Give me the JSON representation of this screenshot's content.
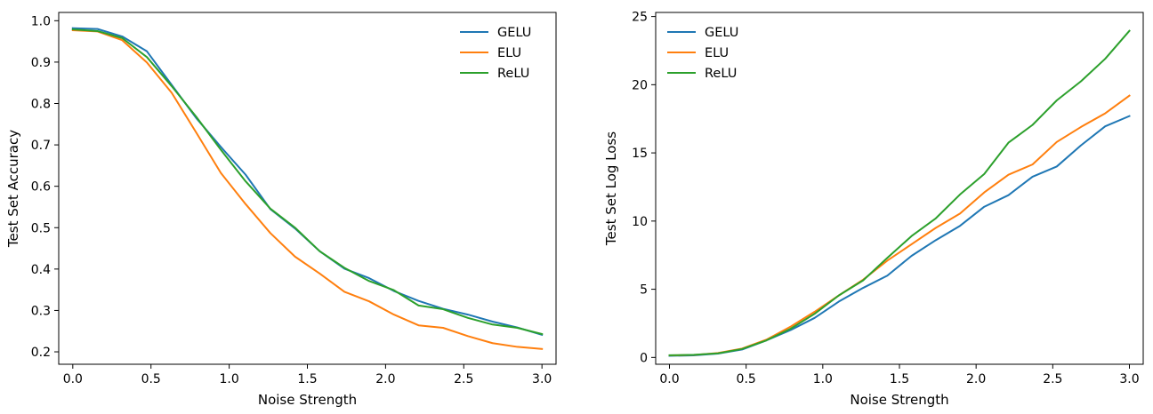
{
  "chart_data": [
    {
      "type": "line",
      "title": "",
      "xlabel": "Noise Strength",
      "ylabel": "Test Set Accuracy",
      "xlim": [
        -0.09,
        3.09
      ],
      "ylim": [
        0.17,
        1.02
      ],
      "xticks": [
        "0.0",
        "0.5",
        "1.0",
        "1.5",
        "2.0",
        "2.5",
        "3.0"
      ],
      "yticks": [
        "0.2",
        "0.3",
        "0.4",
        "0.5",
        "0.6",
        "0.7",
        "0.8",
        "0.9",
        "1.0"
      ],
      "legend_position": "top-right",
      "grid": false,
      "x": [
        0.0,
        0.158,
        0.316,
        0.474,
        0.632,
        0.789,
        0.947,
        1.105,
        1.263,
        1.421,
        1.579,
        1.737,
        1.895,
        2.053,
        2.211,
        2.368,
        2.526,
        2.684,
        2.842,
        3.0
      ],
      "series": [
        {
          "name": "GELU",
          "color": "#1f77b4",
          "values": [
            0.982,
            0.98,
            0.962,
            0.926,
            0.845,
            0.765,
            0.695,
            0.628,
            0.545,
            0.498,
            0.443,
            0.401,
            0.378,
            0.347,
            0.323,
            0.304,
            0.29,
            0.273,
            0.259,
            0.241
          ]
        },
        {
          "name": "ELU",
          "color": "#ff7f0e",
          "values": [
            0.977,
            0.974,
            0.953,
            0.899,
            0.826,
            0.73,
            0.632,
            0.557,
            0.487,
            0.43,
            0.389,
            0.345,
            0.322,
            0.29,
            0.264,
            0.258,
            0.238,
            0.221,
            0.212,
            0.207
          ]
        },
        {
          "name": "ReLU",
          "color": "#2ca02c",
          "values": [
            0.979,
            0.975,
            0.958,
            0.912,
            0.842,
            0.768,
            0.688,
            0.612,
            0.546,
            0.5,
            0.443,
            0.403,
            0.371,
            0.349,
            0.312,
            0.303,
            0.282,
            0.266,
            0.258,
            0.243
          ]
        }
      ]
    },
    {
      "type": "line",
      "title": "",
      "xlabel": "Noise Strength",
      "ylabel": "Test Set Log Loss",
      "xlim": [
        -0.09,
        3.09
      ],
      "ylim": [
        -0.5,
        25.3
      ],
      "xticks": [
        "0.0",
        "0.5",
        "1.0",
        "1.5",
        "2.0",
        "2.5",
        "3.0"
      ],
      "yticks": [
        "0",
        "5",
        "10",
        "15",
        "20",
        "25"
      ],
      "legend_position": "top-left",
      "grid": false,
      "x": [
        0.0,
        0.158,
        0.316,
        0.474,
        0.632,
        0.789,
        0.947,
        1.105,
        1.263,
        1.421,
        1.579,
        1.737,
        1.895,
        2.053,
        2.211,
        2.368,
        2.526,
        2.684,
        2.842,
        3.0
      ],
      "series": [
        {
          "name": "GELU",
          "color": "#1f77b4",
          "values": [
            0.12,
            0.15,
            0.28,
            0.58,
            1.25,
            2.0,
            2.9,
            4.1,
            5.1,
            6.0,
            7.45,
            8.6,
            9.65,
            11.05,
            11.9,
            13.25,
            14.0,
            15.55,
            16.95,
            17.7
          ]
        },
        {
          "name": "ELU",
          "color": "#ff7f0e",
          "values": [
            0.15,
            0.18,
            0.32,
            0.65,
            1.3,
            2.25,
            3.35,
            4.55,
            5.7,
            7.1,
            8.3,
            9.5,
            10.55,
            12.1,
            13.4,
            14.15,
            15.8,
            16.9,
            17.9,
            19.2
          ]
        },
        {
          "name": "ReLU",
          "color": "#2ca02c",
          "values": [
            0.16,
            0.19,
            0.3,
            0.62,
            1.25,
            2.1,
            3.2,
            4.55,
            5.65,
            7.3,
            8.9,
            10.2,
            11.95,
            13.45,
            15.75,
            17.05,
            18.85,
            20.25,
            21.9,
            23.95
          ]
        }
      ]
    }
  ]
}
